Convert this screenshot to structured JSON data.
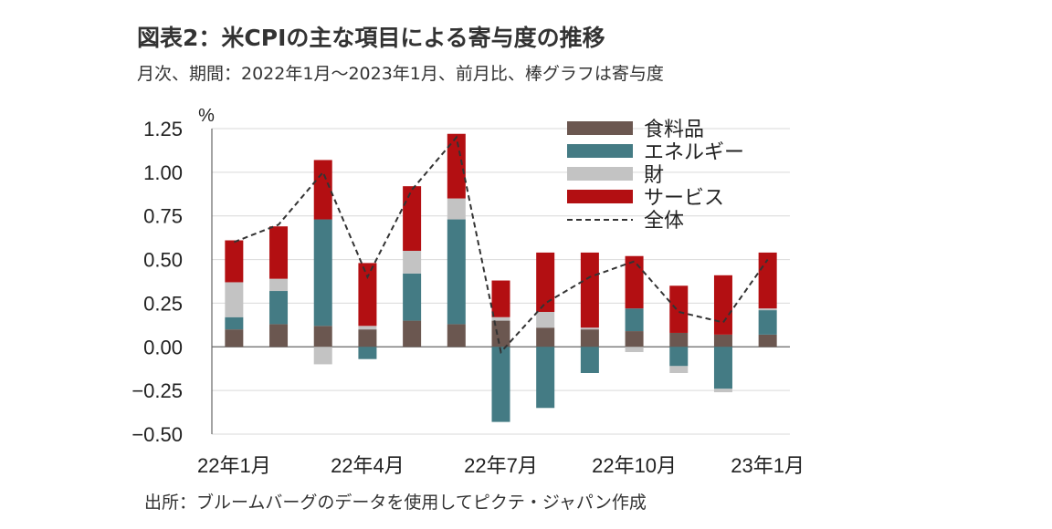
{
  "title": "図表2：米CPIの主な項目による寄与度の推移",
  "subtitle": "月次、期間：2022年1月～2023年1月、前月比、棒グラフは寄与度",
  "source": "出所：ブルームバーグのデータを使用してピクテ・ジャパン作成",
  "colors": {
    "food": "#6b5750",
    "energy": "#447b84",
    "goods": "#c3c3c3",
    "services": "#b30f12",
    "total": "#333333"
  },
  "chart_data": {
    "type": "bar",
    "stacked": true,
    "unit_label": "%",
    "ylim": [
      -0.5,
      1.25
    ],
    "yticks": [
      1.25,
      1.0,
      0.75,
      0.5,
      0.25,
      0.0,
      -0.25,
      -0.5
    ],
    "ytick_labels": [
      "1.25",
      "1.00",
      "0.75",
      "0.50",
      "0.25",
      "0.00",
      "−0.25",
      "−0.50"
    ],
    "categories": [
      "22年1月",
      "22年2月",
      "22年3月",
      "22年4月",
      "22年5月",
      "22年6月",
      "22年7月",
      "22年8月",
      "22年9月",
      "22年10月",
      "22年11月",
      "22年12月",
      "23年1月"
    ],
    "x_tick_labels": [
      {
        "index": 0,
        "label": "22年1月"
      },
      {
        "index": 3,
        "label": "22年4月"
      },
      {
        "index": 6,
        "label": "22年7月"
      },
      {
        "index": 9,
        "label": "22年10月"
      },
      {
        "index": 12,
        "label": "23年1月"
      }
    ],
    "series": [
      {
        "name": "食料品",
        "key": "food",
        "kind": "bar",
        "values": [
          0.1,
          0.13,
          0.12,
          0.1,
          0.15,
          0.13,
          0.15,
          0.11,
          0.1,
          0.09,
          0.08,
          0.07,
          0.07
        ]
      },
      {
        "name": "エネルギー",
        "key": "energy",
        "kind": "bar",
        "values": [
          0.07,
          0.19,
          0.61,
          -0.07,
          0.27,
          0.6,
          -0.43,
          -0.35,
          -0.15,
          0.13,
          -0.11,
          -0.24,
          0.14
        ]
      },
      {
        "name": "財",
        "key": "goods",
        "kind": "bar",
        "values": [
          0.2,
          0.07,
          -0.1,
          0.02,
          0.13,
          0.12,
          0.02,
          0.09,
          0.01,
          -0.03,
          -0.04,
          -0.02,
          0.01
        ]
      },
      {
        "name": "サービス",
        "key": "services",
        "kind": "bar",
        "values": [
          0.24,
          0.3,
          0.34,
          0.36,
          0.37,
          0.37,
          0.21,
          0.34,
          0.43,
          0.3,
          0.27,
          0.34,
          0.32
        ]
      },
      {
        "name": "全体",
        "key": "total",
        "kind": "line",
        "values": [
          0.6,
          0.7,
          1.0,
          0.4,
          0.9,
          1.2,
          -0.03,
          0.25,
          0.4,
          0.49,
          0.2,
          0.14,
          0.5
        ]
      }
    ],
    "legend_position": "top-right",
    "grid": true
  }
}
